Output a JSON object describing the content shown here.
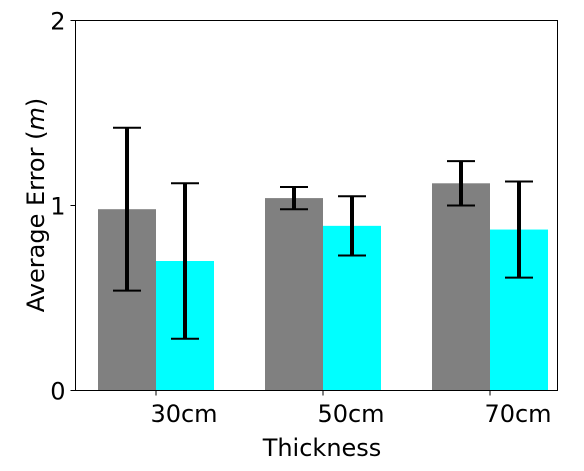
{
  "chart_data": {
    "type": "bar",
    "xlabel": "Thickness",
    "ylabel_main": "Average Error (",
    "ylabel_unit": "m",
    "ylabel_close": ")",
    "ylim": [
      0,
      2
    ],
    "yticks": [
      "0",
      "1",
      "2"
    ],
    "categories": [
      "30cm",
      "50cm",
      "70cm"
    ],
    "series": [
      {
        "color": "#808080",
        "values": [
          0.98,
          1.04,
          1.12
        ],
        "errors": [
          0.44,
          0.06,
          0.12
        ]
      },
      {
        "color": "#00ffff",
        "values": [
          0.7,
          0.89,
          0.87
        ],
        "errors": [
          0.42,
          0.16,
          0.26
        ]
      }
    ],
    "grid": false,
    "legend": "none"
  }
}
